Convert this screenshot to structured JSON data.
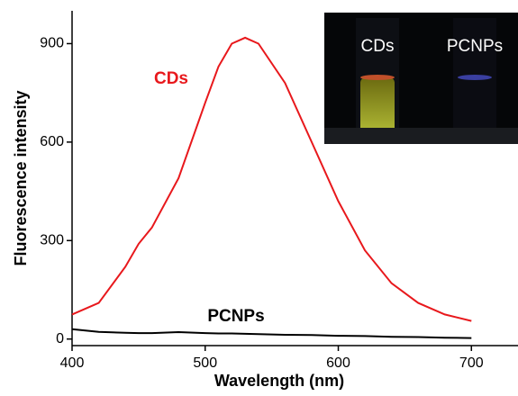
{
  "chart_data": {
    "type": "line",
    "x_label": "Wavelength (nm)",
    "y_label": "Fluorescence intensity",
    "x": [
      400,
      420,
      440,
      450,
      460,
      480,
      500,
      510,
      520,
      530,
      540,
      560,
      580,
      600,
      620,
      640,
      660,
      680,
      700
    ],
    "series": [
      {
        "name": "CDs",
        "color": "#e8181c",
        "values": [
          75,
          110,
          220,
          290,
          340,
          490,
          720,
          830,
          900,
          918,
          900,
          780,
          600,
          420,
          270,
          170,
          110,
          75,
          55
        ]
      },
      {
        "name": "PCNPs",
        "color": "#000000",
        "values": [
          30,
          22,
          19,
          18,
          18,
          21,
          18,
          17,
          17,
          16,
          15,
          13,
          12,
          10,
          9,
          7,
          6,
          4,
          3
        ]
      }
    ],
    "xlim": [
      400,
      735
    ],
    "ylim": [
      -20,
      1000
    ],
    "xticks": [
      400,
      500,
      600,
      700
    ],
    "yticks": [
      0,
      300,
      600,
      900
    ],
    "inset_labels": [
      "CDs",
      "PCNPs"
    ]
  }
}
